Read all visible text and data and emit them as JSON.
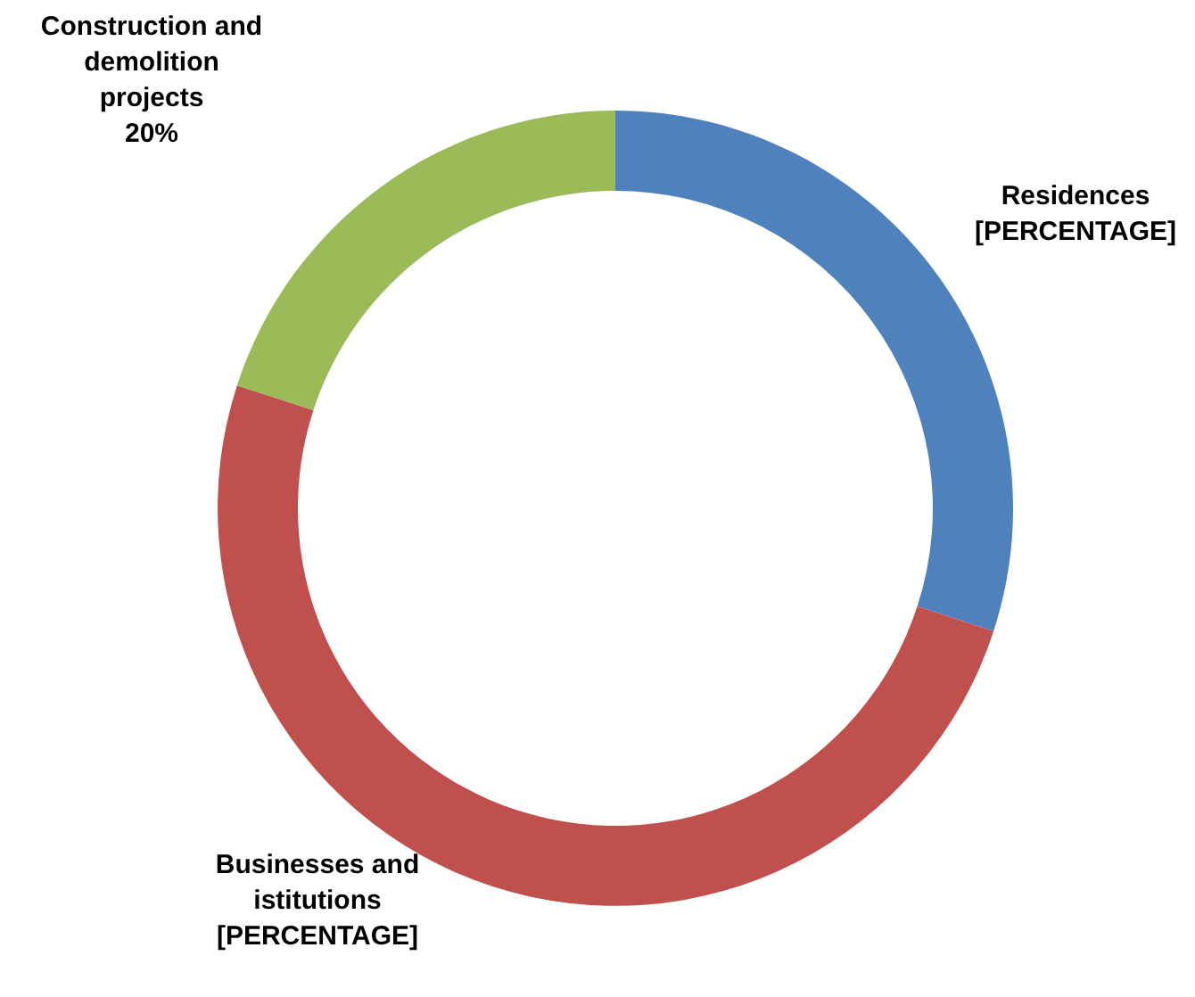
{
  "chart_data": {
    "type": "donut",
    "categories": [
      "Residences",
      "Businesses and istitutions",
      "Construction and demolition projects"
    ],
    "values": [
      30,
      50,
      20
    ],
    "colors": [
      "#4f81bd",
      "#c0504d",
      "#9bbb59"
    ],
    "value_labels": [
      "[PERCENTAGE]",
      "[PERCENTAGE]",
      "20%"
    ],
    "legend": false
  }
}
